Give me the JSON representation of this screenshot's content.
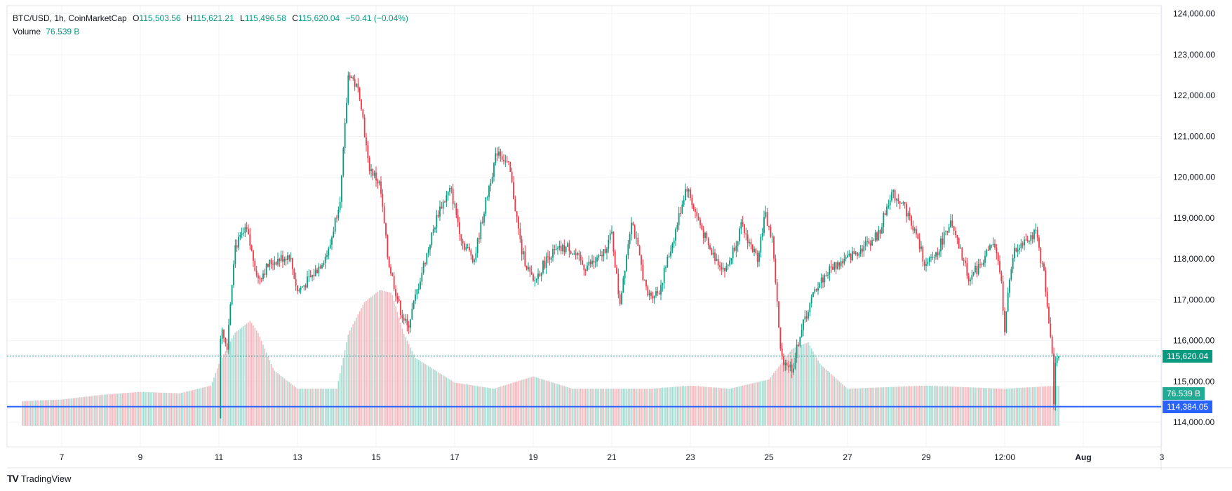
{
  "legend": {
    "symbol": "BTC/USD, 1h, CoinMarketCap",
    "o_label": "O",
    "o": "115,503.56",
    "h_label": "H",
    "h": "115,621.21",
    "l_label": "L",
    "l": "115,496.58",
    "c_label": "C",
    "c": "115,620.04",
    "change": "−50.41 (−0.04%)",
    "volume_label": "Volume",
    "volume": "76.539 B"
  },
  "brand": {
    "logo": "TV",
    "name": "TradingView"
  },
  "price_tags": {
    "last": "115,620.04",
    "volume": "76.539 B",
    "line": "114,384.05"
  },
  "colors": {
    "up": "#089981",
    "down": "#f23645",
    "volume_up": "#a7dbd1",
    "volume_down": "#f7b8bd",
    "hline": "#2962ff",
    "grid": "#f0f3fa"
  },
  "chart_data": {
    "type": "candlestick",
    "interval": "1h",
    "ylim": [
      113400,
      124200
    ],
    "y_ticks": [
      "124,000.00",
      "123,000.00",
      "122,000.00",
      "121,000.00",
      "120,000.00",
      "119,000.00",
      "118,000.00",
      "117,000.00",
      "116,000.00",
      "115,000.00",
      "114,000.00"
    ],
    "x_ticks": [
      "7",
      "9",
      "11",
      "13",
      "15",
      "17",
      "19",
      "21",
      "23",
      "25",
      "27",
      "29",
      "12:00",
      "Aug",
      "3"
    ],
    "horizontal_line": 114384.05,
    "last_price": 115620.04,
    "price_path": [
      {
        "x": 11.0,
        "p": 114100
      },
      {
        "x": 11.05,
        "p": 116500
      },
      {
        "x": 11.2,
        "p": 115800
      },
      {
        "x": 11.4,
        "p": 118300
      },
      {
        "x": 11.7,
        "p": 118700
      },
      {
        "x": 12.0,
        "p": 117500
      },
      {
        "x": 12.3,
        "p": 117900
      },
      {
        "x": 12.8,
        "p": 118100
      },
      {
        "x": 13.0,
        "p": 117200
      },
      {
        "x": 13.4,
        "p": 117600
      },
      {
        "x": 13.8,
        "p": 118200
      },
      {
        "x": 14.1,
        "p": 119600
      },
      {
        "x": 14.3,
        "p": 122600
      },
      {
        "x": 14.6,
        "p": 122000
      },
      {
        "x": 14.8,
        "p": 120300
      },
      {
        "x": 15.1,
        "p": 119800
      },
      {
        "x": 15.3,
        "p": 118000
      },
      {
        "x": 15.6,
        "p": 116800
      },
      {
        "x": 15.8,
        "p": 116300
      },
      {
        "x": 16.2,
        "p": 117800
      },
      {
        "x": 16.6,
        "p": 119200
      },
      {
        "x": 16.9,
        "p": 119700
      },
      {
        "x": 17.2,
        "p": 118400
      },
      {
        "x": 17.5,
        "p": 118000
      },
      {
        "x": 17.9,
        "p": 119900
      },
      {
        "x": 18.1,
        "p": 120700
      },
      {
        "x": 18.4,
        "p": 120200
      },
      {
        "x": 18.7,
        "p": 118200
      },
      {
        "x": 19.0,
        "p": 117400
      },
      {
        "x": 19.4,
        "p": 118100
      },
      {
        "x": 19.9,
        "p": 118300
      },
      {
        "x": 20.3,
        "p": 117800
      },
      {
        "x": 20.7,
        "p": 118000
      },
      {
        "x": 21.0,
        "p": 118600
      },
      {
        "x": 21.2,
        "p": 116900
      },
      {
        "x": 21.5,
        "p": 119000
      },
      {
        "x": 21.9,
        "p": 117100
      },
      {
        "x": 22.2,
        "p": 117200
      },
      {
        "x": 22.6,
        "p": 118600
      },
      {
        "x": 22.9,
        "p": 119800
      },
      {
        "x": 23.1,
        "p": 119200
      },
      {
        "x": 23.5,
        "p": 118200
      },
      {
        "x": 23.9,
        "p": 117700
      },
      {
        "x": 24.3,
        "p": 118800
      },
      {
        "x": 24.7,
        "p": 118000
      },
      {
        "x": 24.9,
        "p": 119100
      },
      {
        "x": 25.1,
        "p": 118400
      },
      {
        "x": 25.3,
        "p": 115600
      },
      {
        "x": 25.6,
        "p": 115300
      },
      {
        "x": 25.8,
        "p": 116200
      },
      {
        "x": 26.2,
        "p": 117300
      },
      {
        "x": 26.6,
        "p": 117800
      },
      {
        "x": 27.0,
        "p": 118000
      },
      {
        "x": 27.4,
        "p": 118300
      },
      {
        "x": 27.8,
        "p": 118600
      },
      {
        "x": 28.1,
        "p": 119600
      },
      {
        "x": 28.4,
        "p": 119400
      },
      {
        "x": 28.7,
        "p": 118700
      },
      {
        "x": 29.0,
        "p": 117800
      },
      {
        "x": 29.3,
        "p": 118200
      },
      {
        "x": 29.6,
        "p": 118900
      },
      {
        "x": 29.9,
        "p": 118100
      },
      {
        "x": 30.1,
        "p": 117500
      },
      {
        "x": 30.4,
        "p": 117900
      },
      {
        "x": 30.7,
        "p": 118400
      },
      {
        "x": 30.9,
        "p": 117600
      },
      {
        "x": 31.0,
        "p": 116300
      },
      {
        "x": 31.2,
        "p": 118100
      },
      {
        "x": 31.5,
        "p": 118500
      },
      {
        "x": 31.8,
        "p": 118600
      },
      {
        "x": 32.0,
        "p": 117600
      },
      {
        "x": 32.1,
        "p": 116600
      },
      {
        "x": 32.2,
        "p": 116000
      },
      {
        "x": 32.25,
        "p": 114400
      },
      {
        "x": 32.3,
        "p": 115700
      },
      {
        "x": 32.4,
        "p": 115600
      }
    ],
    "volume_path": [
      {
        "x": 6.0,
        "v": 0.08
      },
      {
        "x": 7.0,
        "v": 0.085
      },
      {
        "x": 8.0,
        "v": 0.1
      },
      {
        "x": 9.0,
        "v": 0.11
      },
      {
        "x": 10.0,
        "v": 0.105
      },
      {
        "x": 10.8,
        "v": 0.13
      },
      {
        "x": 11.0,
        "v": 0.2
      },
      {
        "x": 11.4,
        "v": 0.3
      },
      {
        "x": 11.8,
        "v": 0.34
      },
      {
        "x": 12.0,
        "v": 0.3
      },
      {
        "x": 12.4,
        "v": 0.18
      },
      {
        "x": 13.0,
        "v": 0.12
      },
      {
        "x": 14.0,
        "v": 0.12
      },
      {
        "x": 14.3,
        "v": 0.3
      },
      {
        "x": 14.7,
        "v": 0.4
      },
      {
        "x": 15.1,
        "v": 0.44
      },
      {
        "x": 15.4,
        "v": 0.43
      },
      {
        "x": 15.7,
        "v": 0.3
      },
      {
        "x": 16.0,
        "v": 0.22
      },
      {
        "x": 16.5,
        "v": 0.18
      },
      {
        "x": 17.0,
        "v": 0.14
      },
      {
        "x": 18.0,
        "v": 0.12
      },
      {
        "x": 19.0,
        "v": 0.16
      },
      {
        "x": 19.5,
        "v": 0.14
      },
      {
        "x": 20.0,
        "v": 0.12
      },
      {
        "x": 22.0,
        "v": 0.12
      },
      {
        "x": 23.0,
        "v": 0.13
      },
      {
        "x": 24.0,
        "v": 0.12
      },
      {
        "x": 25.0,
        "v": 0.15
      },
      {
        "x": 25.6,
        "v": 0.25
      },
      {
        "x": 26.0,
        "v": 0.27
      },
      {
        "x": 26.3,
        "v": 0.2
      },
      {
        "x": 27.0,
        "v": 0.12
      },
      {
        "x": 29.0,
        "v": 0.13
      },
      {
        "x": 31.0,
        "v": 0.12
      },
      {
        "x": 32.4,
        "v": 0.13
      }
    ]
  }
}
